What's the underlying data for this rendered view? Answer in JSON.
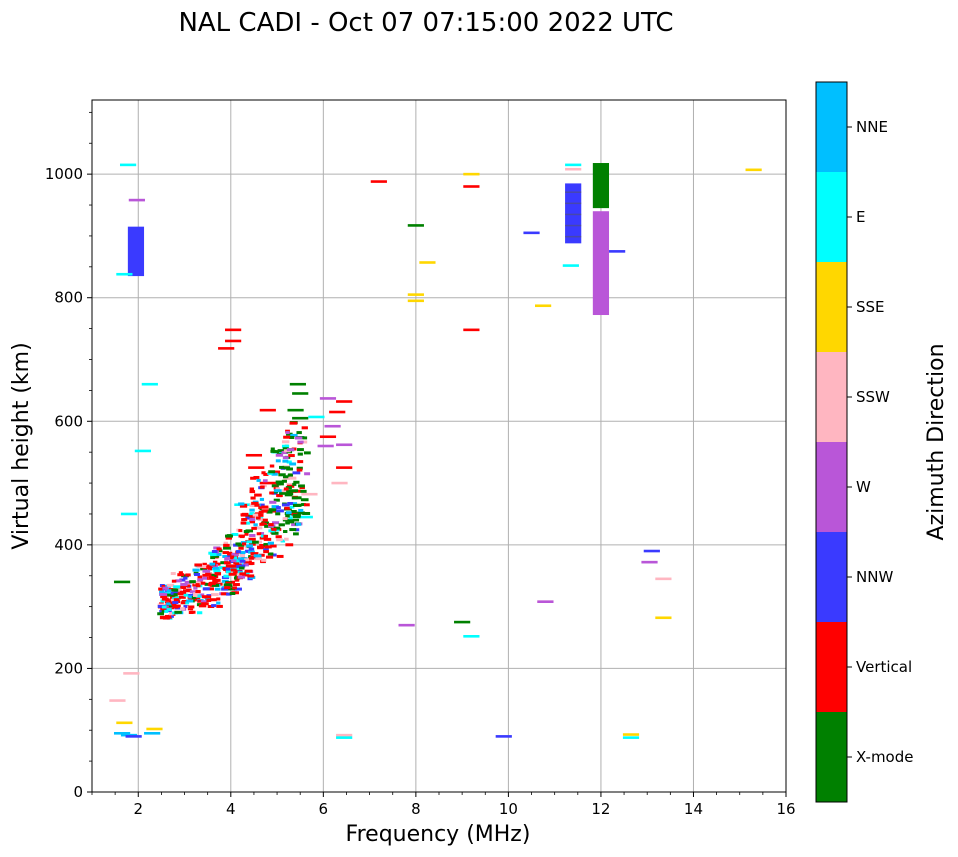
{
  "chart_data": {
    "type": "scatter",
    "title": "NAL CADI - Oct 07 07:15:00 2022 UTC",
    "xlabel": "Frequency (MHz)",
    "ylabel": "Virtual height (km)",
    "xlim": [
      1,
      16
    ],
    "ylim": [
      0,
      1120
    ],
    "xticks": [
      "2",
      "4",
      "6",
      "8",
      "10",
      "12",
      "14",
      "16"
    ],
    "yticks": [
      "0",
      "200",
      "400",
      "600",
      "800",
      "1000"
    ],
    "grid": true,
    "colorbar": {
      "label": "Azimuth Direction",
      "categories": [
        {
          "name": "X-mode",
          "color": "#008000"
        },
        {
          "name": "Vertical",
          "color": "#ff0000"
        },
        {
          "name": "NNW",
          "color": "#3a3aff"
        },
        {
          "name": "W",
          "color": "#b956d8"
        },
        {
          "name": "SSW",
          "color": "#ffb6c1"
        },
        {
          "name": "SSE",
          "color": "#ffd700"
        },
        {
          "name": "E",
          "color": "#00ffff"
        },
        {
          "name": "NNE",
          "color": "#00bfff"
        }
      ]
    },
    "echoes": [
      {
        "f": 1.95,
        "h": 835,
        "h2": 915,
        "c": "NNW"
      },
      {
        "f": 1.97,
        "h": 958,
        "c": "W"
      },
      {
        "f": 1.78,
        "h": 1015,
        "c": "E"
      },
      {
        "f": 1.7,
        "h": 838,
        "c": "E"
      },
      {
        "f": 2.25,
        "h": 660,
        "c": "E"
      },
      {
        "f": 2.1,
        "h": 552,
        "c": "E"
      },
      {
        "f": 1.8,
        "h": 450,
        "c": "E"
      },
      {
        "f": 1.65,
        "h": 340,
        "c": "X-mode"
      },
      {
        "f": 1.85,
        "h": 192,
        "c": "SSW"
      },
      {
        "f": 1.55,
        "h": 148,
        "c": "SSW"
      },
      {
        "f": 1.7,
        "h": 112,
        "c": "SSE"
      },
      {
        "f": 1.65,
        "h": 95,
        "c": "NNE"
      },
      {
        "f": 1.8,
        "h": 92,
        "c": "NNE"
      },
      {
        "f": 1.9,
        "h": 90,
        "c": "NNW"
      },
      {
        "f": 2.3,
        "h": 95,
        "c": "NNE"
      },
      {
        "f": 2.35,
        "h": 102,
        "c": "SSE"
      },
      {
        "f": 3.9,
        "h": 718,
        "c": "Vertical"
      },
      {
        "f": 4.05,
        "h": 748,
        "c": "Vertical"
      },
      {
        "f": 4.05,
        "h": 730,
        "c": "Vertical"
      },
      {
        "f": 4.8,
        "h": 618,
        "c": "Vertical"
      },
      {
        "f": 5.45,
        "h": 660,
        "c": "X-mode"
      },
      {
        "f": 5.5,
        "h": 645,
        "c": "X-mode"
      },
      {
        "f": 5.4,
        "h": 618,
        "c": "X-mode"
      },
      {
        "f": 5.5,
        "h": 605,
        "c": "X-mode"
      },
      {
        "f": 5.85,
        "h": 607,
        "c": "E"
      },
      {
        "f": 6.1,
        "h": 575,
        "c": "Vertical"
      },
      {
        "f": 6.3,
        "h": 615,
        "c": "Vertical"
      },
      {
        "f": 6.45,
        "h": 632,
        "c": "Vertical"
      },
      {
        "f": 6.1,
        "h": 637,
        "c": "W"
      },
      {
        "f": 6.2,
        "h": 592,
        "c": "W"
      },
      {
        "f": 6.05,
        "h": 560,
        "c": "W"
      },
      {
        "f": 6.45,
        "h": 525,
        "c": "Vertical"
      },
      {
        "f": 6.45,
        "h": 562,
        "c": "W"
      },
      {
        "f": 6.35,
        "h": 500,
        "c": "SSW"
      },
      {
        "f": 7.2,
        "h": 988,
        "c": "Vertical"
      },
      {
        "f": 8.0,
        "h": 917,
        "c": "X-mode"
      },
      {
        "f": 8.25,
        "h": 857,
        "c": "SSE"
      },
      {
        "f": 8.0,
        "h": 805,
        "c": "SSE"
      },
      {
        "f": 8.0,
        "h": 795,
        "c": "SSE"
      },
      {
        "f": 9.2,
        "h": 1000,
        "c": "SSE"
      },
      {
        "f": 9.2,
        "h": 980,
        "c": "Vertical"
      },
      {
        "f": 9.2,
        "h": 748,
        "c": "Vertical"
      },
      {
        "f": 10.5,
        "h": 905,
        "c": "NNW"
      },
      {
        "f": 10.75,
        "h": 787,
        "c": "SSE"
      },
      {
        "f": 11.4,
        "h": 888,
        "c": "NNW",
        "h2": 985
      },
      {
        "f": 11.4,
        "h": 1015,
        "c": "E"
      },
      {
        "f": 11.4,
        "h": 1008,
        "c": "SSW"
      },
      {
        "f": 11.35,
        "h": 852,
        "c": "E"
      },
      {
        "f": 12.0,
        "h": 772,
        "c": "W",
        "h2": 940
      },
      {
        "f": 12.0,
        "h": 945,
        "c": "X-mode",
        "h2": 1018
      },
      {
        "f": 12.35,
        "h": 875,
        "c": "NNW"
      },
      {
        "f": 15.3,
        "h": 1007,
        "c": "SSE"
      },
      {
        "f": 13.1,
        "h": 390,
        "c": "NNW"
      },
      {
        "f": 13.05,
        "h": 372,
        "c": "W"
      },
      {
        "f": 13.35,
        "h": 345,
        "c": "SSW"
      },
      {
        "f": 13.35,
        "h": 282,
        "c": "SSE"
      },
      {
        "f": 10.8,
        "h": 308,
        "c": "SSW"
      },
      {
        "f": 10.8,
        "h": 308,
        "c": "W"
      },
      {
        "f": 9.0,
        "h": 275,
        "c": "X-mode"
      },
      {
        "f": 9.2,
        "h": 252,
        "c": "E"
      },
      {
        "f": 7.8,
        "h": 270,
        "c": "W"
      },
      {
        "f": 9.9,
        "h": 90,
        "c": "NNW"
      },
      {
        "f": 6.45,
        "h": 92,
        "c": "SSW"
      },
      {
        "f": 6.45,
        "h": 88,
        "c": "E"
      },
      {
        "f": 12.65,
        "h": 93,
        "c": "SSE"
      },
      {
        "f": 12.65,
        "h": 88,
        "c": "E"
      },
      {
        "f": 5.6,
        "h": 445,
        "c": "E"
      },
      {
        "f": 5.7,
        "h": 482,
        "c": "SSW"
      },
      {
        "f": 5.3,
        "h": 440,
        "c": "X-mode"
      },
      {
        "f": 4.8,
        "h": 500,
        "c": "Vertical"
      },
      {
        "f": 4.5,
        "h": 545,
        "c": "Vertical"
      },
      {
        "f": 4.55,
        "h": 525,
        "c": "Vertical"
      },
      {
        "f": 5.05,
        "h": 550,
        "c": "E"
      },
      {
        "f": 4.25,
        "h": 465,
        "c": "E"
      }
    ],
    "cloud": [
      {
        "f0": 2.4,
        "f1": 2.8,
        "h0": 280,
        "h1": 335
      },
      {
        "f0": 2.7,
        "f1": 3.3,
        "h0": 290,
        "h1": 355
      },
      {
        "f0": 3.1,
        "f1": 3.7,
        "h0": 300,
        "h1": 370
      },
      {
        "f0": 3.5,
        "f1": 4.1,
        "h0": 320,
        "h1": 400
      },
      {
        "f0": 3.8,
        "f1": 4.4,
        "h0": 345,
        "h1": 420
      },
      {
        "f0": 4.1,
        "f1": 4.7,
        "h0": 370,
        "h1": 470
      },
      {
        "f0": 4.4,
        "f1": 5.0,
        "h0": 380,
        "h1": 520
      },
      {
        "f0": 4.8,
        "f1": 5.4,
        "h0": 395,
        "h1": 560
      },
      {
        "f0": 5.1,
        "f1": 5.6,
        "h0": 420,
        "h1": 600
      }
    ]
  }
}
